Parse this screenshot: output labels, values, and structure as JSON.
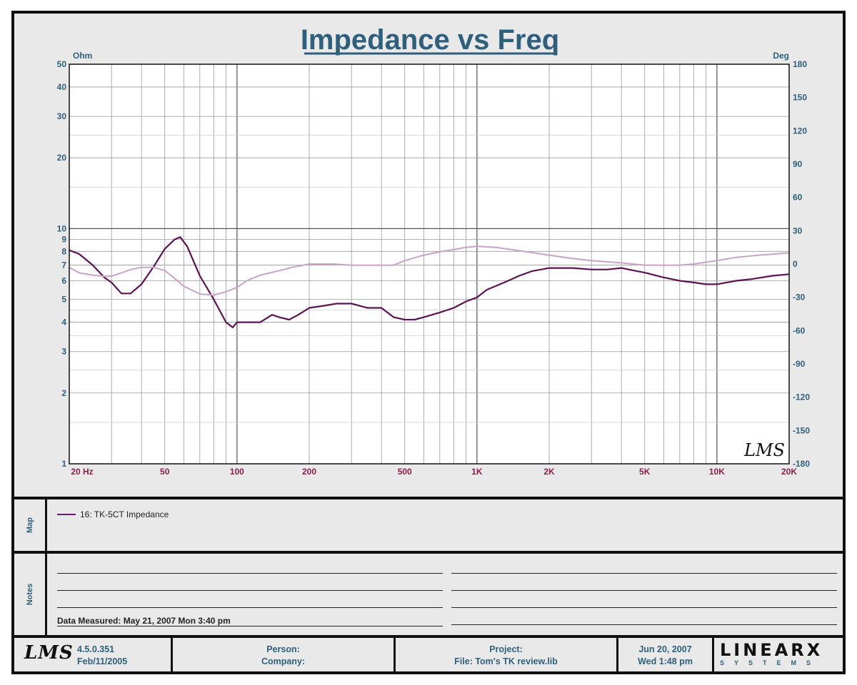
{
  "title": "Impedance vs Freq",
  "left_unit": "Ohm",
  "right_unit": "Deg",
  "watermark": "LMS",
  "colors": {
    "impedance": "#5a1454",
    "phase": "#c8a2c8",
    "title": "#2f5f7a",
    "axis_labels": "#2f5f7a",
    "x_labels": "#8b1e4a"
  },
  "x_tick_labels": [
    "20  Hz",
    "50",
    "100",
    "200",
    "500",
    "1K",
    "2K",
    "5K",
    "10K",
    "20K"
  ],
  "y_left_tick_labels": [
    "50",
    "40",
    "30",
    "20",
    "10",
    "9",
    "8",
    "7",
    "6",
    "5",
    "4",
    "3",
    "2",
    "1"
  ],
  "y_right_tick_labels": [
    "180",
    "150",
    "120",
    "90",
    "60",
    "30",
    "0",
    "-30",
    "-60",
    "-90",
    "-120",
    "-150",
    "-180"
  ],
  "chart_data": {
    "type": "line",
    "title": "Impedance vs Freq",
    "xlabel": "Hz",
    "ylabel": "Ohm",
    "y2label": "Deg",
    "x_scale": "log",
    "y_scale": "log",
    "xlim": [
      20,
      20000
    ],
    "ylim": [
      1,
      50
    ],
    "y2lim": [
      -180,
      180
    ],
    "grid": true,
    "series": [
      {
        "name": "16: TK-5CT Impedance",
        "axis": "left",
        "x": [
          20,
          22,
          25,
          28,
          30,
          33,
          36,
          40,
          45,
          50,
          55,
          58,
          62,
          70,
          80,
          90,
          96,
          100,
          110,
          125,
          140,
          150,
          165,
          180,
          200,
          230,
          260,
          300,
          350,
          400,
          450,
          500,
          550,
          600,
          700,
          800,
          900,
          1000,
          1100,
          1300,
          1500,
          1700,
          2000,
          2500,
          3000,
          3500,
          4000,
          5000,
          6000,
          7000,
          8000,
          9000,
          10000,
          11000,
          12000,
          14000,
          17000,
          20000
        ],
        "y": [
          8.1,
          7.8,
          7.0,
          6.2,
          5.9,
          5.3,
          5.3,
          5.8,
          6.9,
          8.2,
          9.0,
          9.2,
          8.4,
          6.3,
          5.0,
          4.0,
          3.8,
          4.0,
          4.0,
          4.0,
          4.3,
          4.2,
          4.1,
          4.3,
          4.6,
          4.7,
          4.8,
          4.8,
          4.6,
          4.6,
          4.2,
          4.1,
          4.1,
          4.2,
          4.4,
          4.6,
          4.9,
          5.1,
          5.5,
          5.9,
          6.3,
          6.6,
          6.8,
          6.8,
          6.7,
          6.7,
          6.8,
          6.5,
          6.2,
          6.0,
          5.9,
          5.8,
          5.8,
          5.9,
          6.0,
          6.1,
          6.3,
          6.4
        ]
      },
      {
        "name": "",
        "axis": "right",
        "x": [
          20,
          22,
          25,
          28,
          30,
          33,
          36,
          40,
          45,
          50,
          55,
          60,
          70,
          80,
          90,
          100,
          110,
          125,
          150,
          170,
          200,
          250,
          300,
          350,
          400,
          450,
          500,
          600,
          700,
          800,
          900,
          1000,
          1200,
          1500,
          2000,
          2500,
          3000,
          4000,
          5000,
          6000,
          7000,
          8000,
          10000,
          12000,
          15000,
          20000
        ],
        "y": [
          -3,
          -8,
          -10,
          -11,
          -11,
          -8,
          -5,
          -3,
          -3,
          -6,
          -13,
          -20,
          -27,
          -28,
          -25,
          -21,
          -15,
          -10,
          -6,
          -3,
          0,
          0,
          -1,
          -1,
          -1,
          -1,
          3,
          8,
          11,
          13,
          15,
          16,
          15,
          12,
          8,
          5,
          3,
          1,
          -1,
          -1,
          -1,
          0,
          3,
          6,
          8,
          10
        ]
      }
    ]
  },
  "map": {
    "label": "Map",
    "legend_item": "16: TK-5CT Impedance"
  },
  "notes": {
    "label": "Notes",
    "measured": "Data Measured: May 21, 2007  Mon  3:40 pm"
  },
  "footer": {
    "logo": "LMS",
    "version": "4.5.0.351",
    "build_date": "Feb/11/2005",
    "person_label": "Person:",
    "company_label": "Company:",
    "project_label": "Project:",
    "file_label": "File: Tom's TK review.lib",
    "date": "Jun 20, 2007",
    "time": "Wed  1:48 pm",
    "brand_main": "LINEAR",
    "brand_x": "X",
    "brand_sub": "SYSTEMS"
  }
}
